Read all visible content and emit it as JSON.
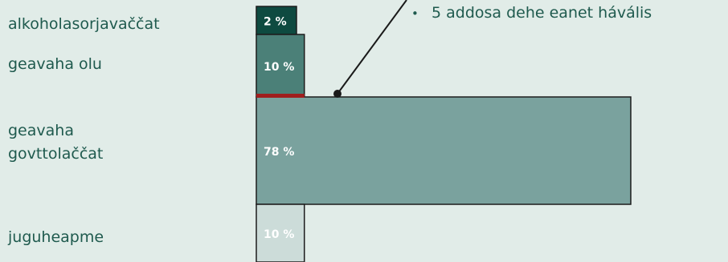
{
  "chart_data": {
    "type": "bar",
    "orientation": "horizontal",
    "categories": [
      "alkoholasorjavaččat",
      "geavaha olu",
      "geavaha govttolaččat",
      "juguheapme"
    ],
    "values": [
      2,
      10,
      78,
      10
    ],
    "value_labels": [
      "2 %",
      "10 %",
      "78 %",
      "10 %"
    ],
    "colors": [
      "#0e4a40",
      "#4b8078",
      "#7aa29e",
      "#ccdcd9"
    ],
    "label_colors": [
      "#ffffff",
      "#ffffff",
      "#ffffff",
      "#ffffff"
    ],
    "highlight_color": "#a01e1e",
    "annotation": "5 addosa dehe eanet hávális"
  }
}
